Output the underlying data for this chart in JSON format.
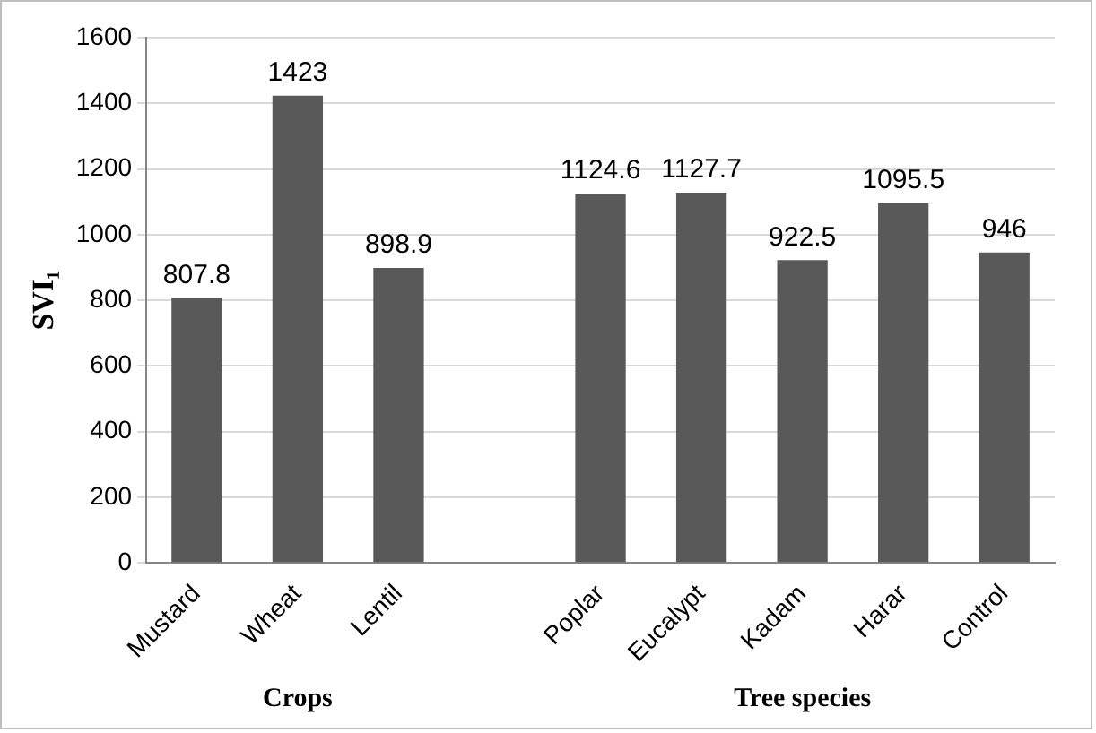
{
  "chart_data": {
    "type": "bar",
    "ylabel": "SVI₁",
    "categories": [
      "Mustard",
      "Wheat",
      "Lentil",
      null,
      "Poplar",
      "Eucalypt",
      "Kadam",
      "Harar",
      "Control"
    ],
    "values": [
      807.8,
      1423,
      898.9,
      null,
      1124.6,
      1127.7,
      922.5,
      1095.5,
      946
    ],
    "color": "#595959",
    "ylim": [
      0,
      1600
    ],
    "yticks": [
      0,
      200,
      400,
      600,
      800,
      1000,
      1200,
      1400,
      1600
    ],
    "grid": "y",
    "data_labels": true,
    "legend": false,
    "annotations": [
      "Crops",
      "Tree species"
    ]
  }
}
